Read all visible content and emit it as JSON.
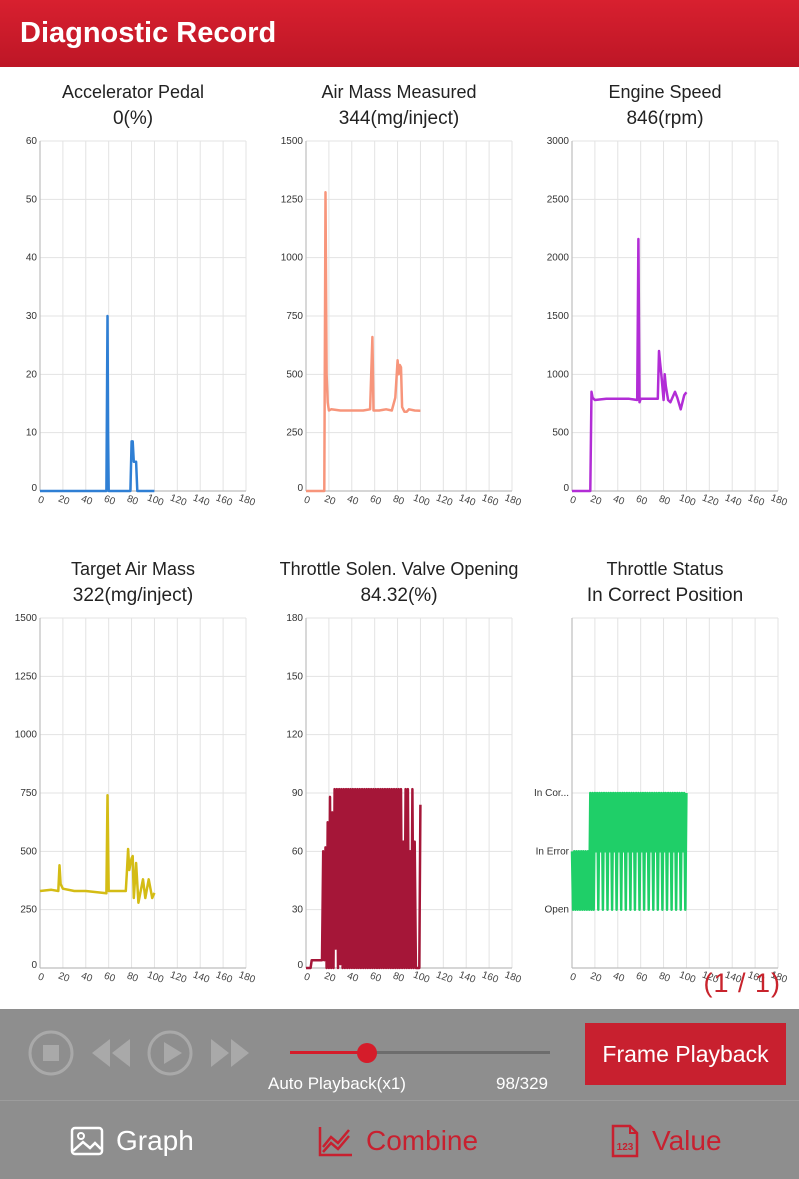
{
  "app_bar": {
    "title": "Diagnostic Record"
  },
  "colors": {
    "brand": "#c8202f",
    "grid": "#e3e3e3",
    "axis": "#bdbdbd"
  },
  "page_indicator": "(1 / 1)",
  "playback": {
    "speed_label": "Auto Playback(x1)",
    "counter": "98/329",
    "progress": 0.298,
    "frame_button": "Frame Playback",
    "icons": [
      "stop-icon",
      "rewind-icon",
      "play-icon",
      "fast-forward-icon"
    ]
  },
  "bottom_nav": [
    {
      "label": "Graph",
      "icon": "image-icon",
      "active": false
    },
    {
      "label": "Combine",
      "icon": "combine-chart-icon",
      "active": true
    },
    {
      "label": "Value",
      "icon": "value-123-icon",
      "active": false
    }
  ],
  "chart_data": [
    {
      "type": "line",
      "title": "Accelerator Pedal",
      "value": "0(%)",
      "color": "#2f7fd4",
      "xlim": [
        0,
        180
      ],
      "ylim": [
        0,
        60
      ],
      "xticks": [
        "0",
        "20",
        "40",
        "60",
        "80",
        "100",
        "120",
        "140",
        "160",
        "180"
      ],
      "yticks": [
        "0",
        "10",
        "20",
        "30",
        "40",
        "50",
        "60"
      ],
      "x": [
        0,
        58,
        59,
        59.5,
        60,
        60.5,
        61,
        78,
        79,
        80,
        81,
        82,
        83,
        84,
        85,
        86,
        87,
        88,
        100
      ],
      "y": [
        0,
        0,
        30,
        10,
        0,
        0,
        0,
        0,
        0,
        8.5,
        8.5,
        5,
        5,
        5,
        0,
        0,
        0,
        0,
        0
      ]
    },
    {
      "type": "line",
      "title": "Air Mass Measured",
      "value": "344(mg/inject)",
      "color": "#f7957b",
      "xlim": [
        0,
        180
      ],
      "ylim": [
        0,
        1500
      ],
      "xticks": [
        "0",
        "20",
        "40",
        "60",
        "80",
        "100",
        "120",
        "140",
        "160",
        "180"
      ],
      "yticks": [
        "0",
        "250",
        "500",
        "750",
        "1000",
        "1250",
        "1500"
      ],
      "x": [
        0,
        16,
        17,
        18,
        19,
        20,
        22,
        30,
        40,
        50,
        56,
        58,
        59,
        61,
        64,
        70,
        75,
        78,
        80,
        81,
        82,
        83,
        84,
        86,
        88,
        90,
        95,
        100
      ],
      "y": [
        0,
        0,
        1280,
        500,
        380,
        345,
        350,
        345,
        345,
        345,
        350,
        660,
        345,
        345,
        345,
        350,
        345,
        400,
        560,
        500,
        540,
        530,
        360,
        340,
        340,
        350,
        345,
        344
      ]
    },
    {
      "type": "line",
      "title": "Engine Speed",
      "value": "846(rpm)",
      "color": "#b22dd6",
      "xlim": [
        0,
        180
      ],
      "ylim": [
        0,
        3000
      ],
      "xticks": [
        "0",
        "20",
        "40",
        "60",
        "80",
        "100",
        "120",
        "140",
        "160",
        "180"
      ],
      "yticks": [
        "0",
        "500",
        "1000",
        "1500",
        "2000",
        "2500",
        "3000"
      ],
      "x": [
        0,
        16,
        17,
        18,
        20,
        30,
        40,
        50,
        57,
        58,
        59,
        60,
        62,
        64,
        75,
        76,
        77,
        78,
        80,
        81,
        82,
        84,
        86,
        90,
        92,
        95,
        98,
        100
      ],
      "y": [
        0,
        0,
        850,
        800,
        780,
        790,
        790,
        790,
        780,
        2160,
        760,
        790,
        790,
        790,
        790,
        1200,
        1100,
        1000,
        780,
        1000,
        900,
        780,
        760,
        850,
        800,
        700,
        820,
        846
      ]
    },
    {
      "type": "line",
      "title": "Target Air Mass",
      "value": "322(mg/inject)",
      "color": "#d4bc15",
      "xlim": [
        0,
        180
      ],
      "ylim": [
        0,
        1500
      ],
      "xticks": [
        "0",
        "20",
        "40",
        "60",
        "80",
        "100",
        "120",
        "140",
        "160",
        "180"
      ],
      "yticks": [
        "0",
        "250",
        "500",
        "750",
        "1000",
        "1250",
        "1500"
      ],
      "x": [
        0,
        10,
        16,
        17,
        18,
        20,
        30,
        40,
        50,
        58,
        59,
        60,
        61,
        75,
        76,
        77,
        78,
        80,
        81,
        82,
        84,
        86,
        88,
        90,
        92,
        95,
        98,
        100
      ],
      "y": [
        330,
        335,
        330,
        440,
        360,
        340,
        330,
        330,
        325,
        320,
        740,
        330,
        330,
        330,
        420,
        510,
        420,
        470,
        480,
        300,
        450,
        280,
        330,
        380,
        300,
        380,
        300,
        322
      ]
    },
    {
      "type": "line",
      "title": "Throttle Solen. Valve Opening",
      "value": "84.32(%)",
      "color": "#a51638",
      "xlim": [
        0,
        180
      ],
      "ylim": [
        0,
        180
      ],
      "xticks": [
        "0",
        "20",
        "40",
        "60",
        "80",
        "100",
        "120",
        "140",
        "160",
        "180"
      ],
      "yticks": [
        "0",
        "30",
        "60",
        "90",
        "120",
        "150",
        "180"
      ],
      "x": [
        0,
        4,
        5,
        12,
        14,
        15,
        16,
        17,
        18,
        19,
        20,
        21,
        22,
        23,
        24,
        25,
        26,
        27,
        28,
        29,
        30,
        31,
        32,
        33,
        34,
        35,
        36,
        37,
        38,
        39,
        40,
        41,
        42,
        43,
        44,
        45,
        46,
        47,
        48,
        49,
        50,
        51,
        52,
        53,
        54,
        55,
        56,
        57,
        58,
        59,
        60,
        61,
        62,
        63,
        64,
        65,
        66,
        67,
        68,
        69,
        70,
        71,
        72,
        73,
        74,
        75,
        76,
        77,
        78,
        79,
        80,
        81,
        82,
        83,
        84,
        85,
        86,
        87,
        88,
        89,
        90,
        91,
        92,
        93,
        94,
        95,
        96,
        97,
        98,
        99,
        100
      ],
      "y": [
        0,
        0,
        4,
        4,
        4,
        60,
        4,
        62,
        0,
        75,
        0,
        88,
        0,
        80,
        0,
        92,
        10,
        92,
        0,
        92,
        2,
        92,
        0,
        92,
        0,
        92,
        0,
        92,
        0,
        92,
        0,
        92,
        0,
        92,
        0,
        92,
        0,
        92,
        0,
        92,
        0,
        92,
        0,
        92,
        0,
        92,
        0,
        92,
        0,
        92,
        0,
        92,
        0,
        92,
        0,
        92,
        0,
        92,
        0,
        92,
        0,
        92,
        0,
        92,
        0,
        92,
        0,
        92,
        0,
        92,
        0,
        92,
        0,
        92,
        0,
        65,
        0,
        92,
        0,
        92,
        0,
        60,
        0,
        92,
        0,
        65,
        0,
        0,
        0,
        0,
        84
      ]
    },
    {
      "type": "line",
      "title": "Throttle Status",
      "value": "In Correct Position",
      "color": "#1fcf68",
      "xlim": [
        0,
        180
      ],
      "ylim": [
        0,
        6
      ],
      "xticks": [
        "0",
        "20",
        "40",
        "60",
        "80",
        "100",
        "120",
        "140",
        "160",
        "180"
      ],
      "ytick_values": [
        1,
        2,
        3
      ],
      "yticks": [
        "Open",
        "In Error",
        "In Cor..."
      ],
      "x": [
        0,
        1,
        2,
        3,
        4,
        5,
        6,
        7,
        8,
        9,
        10,
        11,
        12,
        13,
        14,
        15,
        16,
        17,
        18,
        19,
        20,
        21,
        22,
        23,
        24,
        25,
        26,
        27,
        28,
        29,
        30,
        31,
        32,
        33,
        34,
        35,
        36,
        37,
        38,
        39,
        40,
        41,
        42,
        43,
        44,
        45,
        46,
        47,
        48,
        49,
        50,
        51,
        52,
        53,
        54,
        55,
        56,
        57,
        58,
        59,
        60,
        61,
        62,
        63,
        64,
        65,
        66,
        67,
        68,
        69,
        70,
        71,
        72,
        73,
        74,
        75,
        76,
        77,
        78,
        79,
        80,
        81,
        82,
        83,
        84,
        85,
        86,
        87,
        88,
        89,
        90,
        91,
        92,
        93,
        94,
        95,
        96,
        97,
        98,
        99,
        100
      ],
      "y": [
        2,
        1,
        2,
        1,
        2,
        1,
        2,
        1,
        2,
        1,
        2,
        1,
        2,
        1,
        2,
        1,
        3,
        1,
        3,
        1,
        3,
        2,
        3,
        1,
        3,
        2,
        3,
        1,
        3,
        2,
        3,
        1,
        3,
        2,
        3,
        1,
        3,
        2,
        3,
        1,
        3,
        2,
        3,
        1,
        3,
        2,
        3,
        1,
        3,
        2,
        3,
        1,
        3,
        2,
        3,
        1,
        3,
        2,
        3,
        1,
        3,
        2,
        3,
        1,
        3,
        2,
        3,
        1,
        3,
        2,
        3,
        1,
        3,
        2,
        3,
        1,
        3,
        2,
        3,
        1,
        3,
        2,
        3,
        1,
        3,
        2,
        3,
        1,
        3,
        2,
        3,
        1,
        3,
        2,
        3,
        1,
        3,
        2,
        3,
        1,
        3
      ]
    }
  ]
}
